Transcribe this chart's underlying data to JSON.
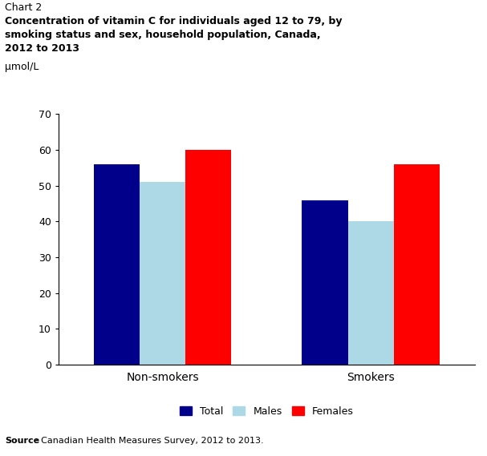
{
  "chart_label": "Chart 2",
  "title_line1": "Concentration of vitamin C for individuals aged 12 to 79, by",
  "title_line2": "smoking status and sex, household population, Canada,",
  "title_line3": "2012 to 2013",
  "ylabel": "μmol/L",
  "source_bold": "Source",
  "source_rest": ": Canadian Health Measures Survey, 2012 to 2013.",
  "categories": [
    "Non-smokers",
    "Smokers"
  ],
  "series": {
    "Total": [
      56,
      46
    ],
    "Males": [
      51,
      40
    ],
    "Females": [
      60,
      56
    ]
  },
  "colors": {
    "Total": "#00008B",
    "Males": "#ADD8E6",
    "Females": "#FF0000"
  },
  "ylim": [
    0,
    70
  ],
  "yticks": [
    0,
    10,
    20,
    30,
    40,
    50,
    60,
    70
  ],
  "legend_labels": [
    "Total",
    "Males",
    "Females"
  ],
  "bar_width": 0.22,
  "fig_width": 6.07,
  "fig_height": 5.69,
  "dpi": 100
}
